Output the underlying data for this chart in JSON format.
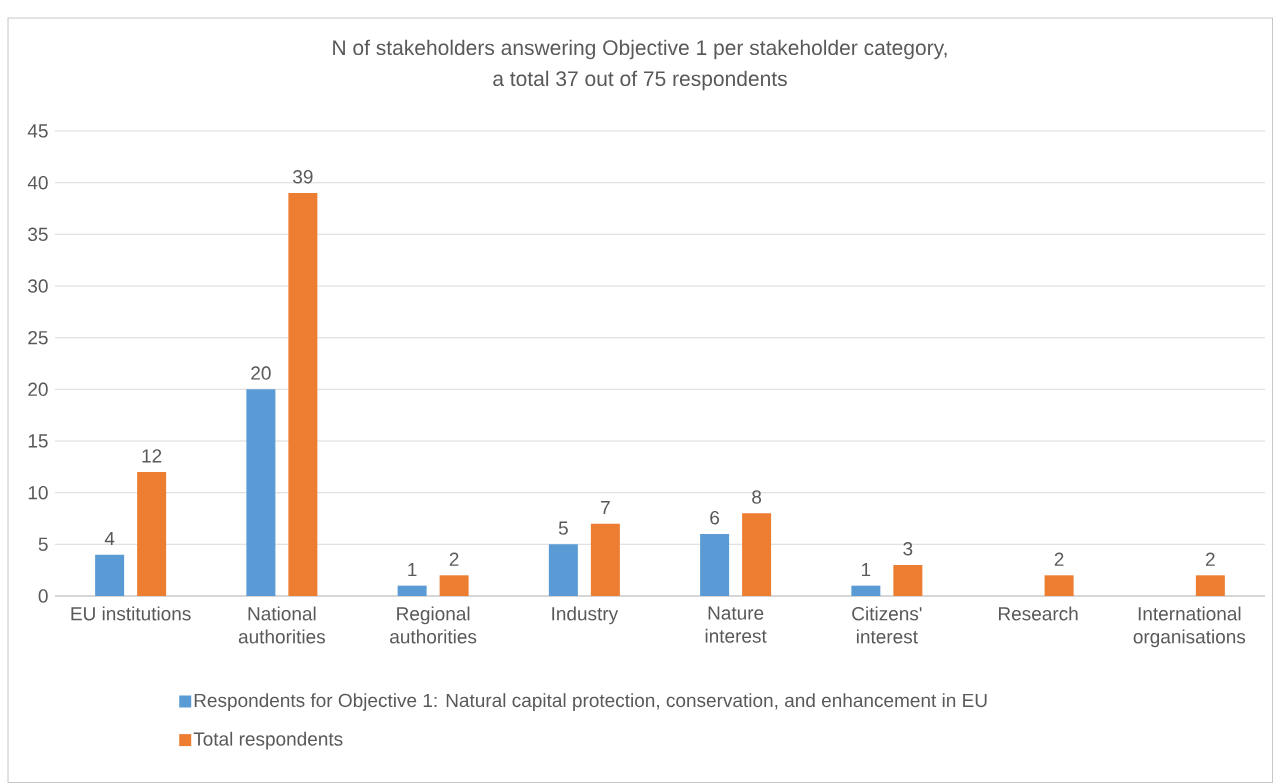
{
  "chart_data": {
    "type": "bar",
    "title": "N of stakeholders answering Objective 1 per stakeholder category,\na total 37 out of 75 respondents",
    "categories": [
      "EU institutions",
      "National\nauthorities",
      "Regional\nauthorities",
      "Industry",
      "Nature\ninterest",
      "Citizens'\ninterest",
      "Research",
      "International\norganisations"
    ],
    "series": [
      {
        "name": "Respondents for Objective 1: Natural capital protection, conservation, and enhancement in EU",
        "color": "#5b9bd5",
        "values": [
          4,
          20,
          1,
          5,
          6,
          1,
          null,
          null
        ]
      },
      {
        "name": "Total respondents",
        "color": "#ed7d31",
        "values": [
          12,
          39,
          2,
          7,
          8,
          3,
          2,
          2
        ]
      }
    ],
    "ylim": [
      0,
      45
    ],
    "yticks": [
      0,
      5,
      10,
      15,
      20,
      25,
      30,
      35,
      40,
      45
    ],
    "grid": "y",
    "legend": "bottom",
    "data_labels": true
  }
}
